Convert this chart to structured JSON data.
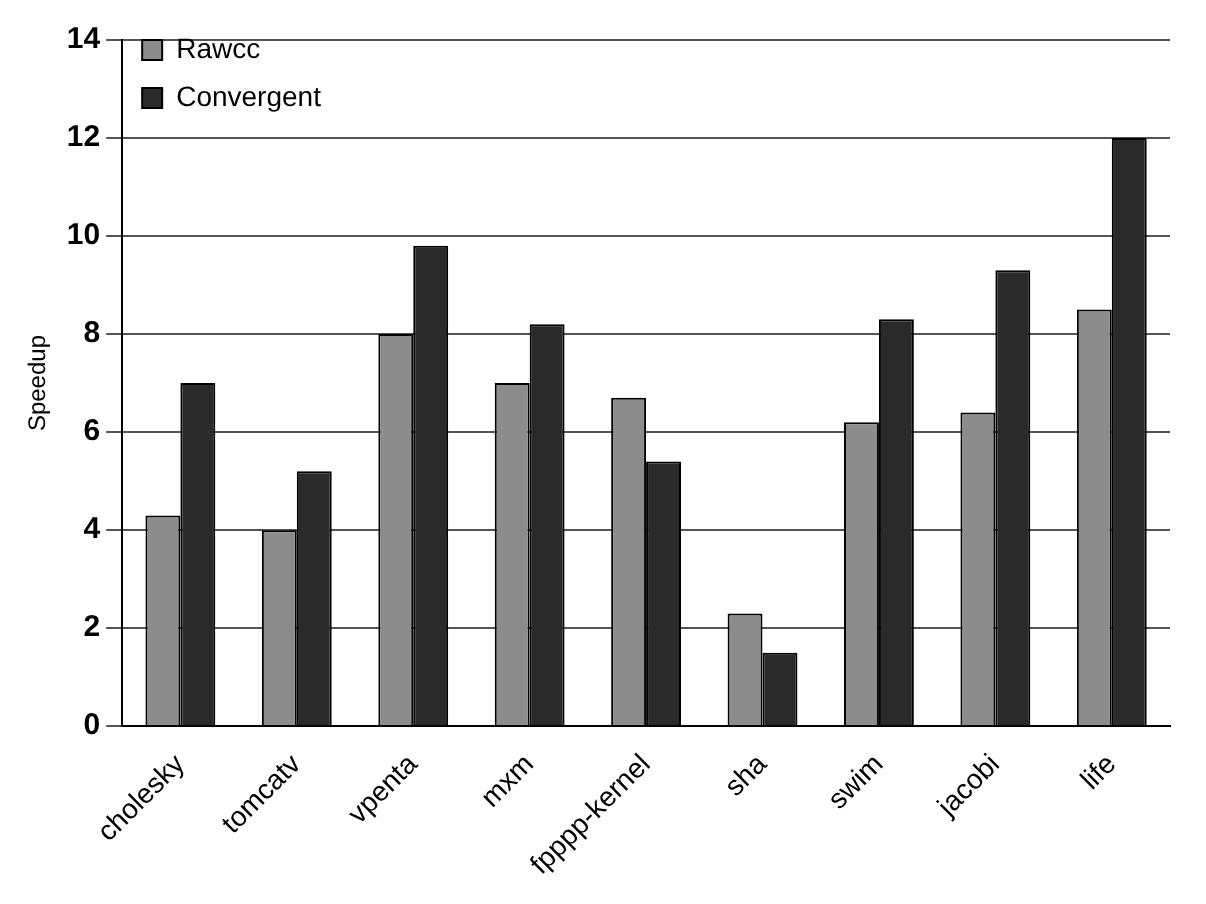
{
  "chart_data": {
    "type": "bar",
    "ylabel": "Speedup",
    "categories": [
      "cholesky",
      "tomcatv",
      "vpenta",
      "mxm",
      "fpppp-kernel",
      "sha",
      "swim",
      "jacobi",
      "life"
    ],
    "series": [
      {
        "name": "Rawcc",
        "color": "#8c8c8c",
        "values": [
          4.3,
          4.0,
          8.0,
          7.0,
          6.7,
          2.3,
          6.2,
          6.4,
          8.5
        ]
      },
      {
        "name": "Convergent",
        "color": "#2a2a2a",
        "values": [
          7.0,
          5.2,
          9.8,
          8.2,
          5.4,
          1.5,
          8.3,
          9.3,
          12.0
        ]
      }
    ],
    "ylim": [
      0,
      14
    ],
    "yticks": [
      0,
      2,
      4,
      6,
      8,
      10,
      12,
      14
    ],
    "grid": "y",
    "legend": "top left"
  }
}
